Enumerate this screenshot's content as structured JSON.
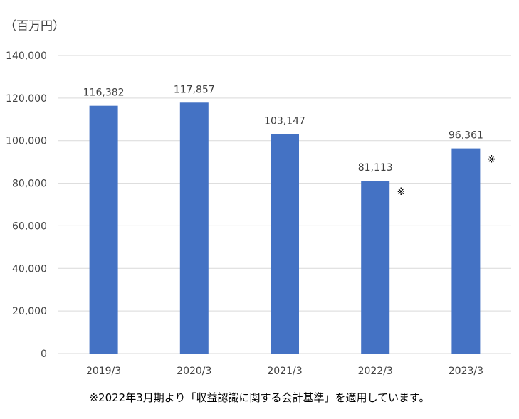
{
  "unit_label": "（百万円）",
  "footnote": "※2022年3月期より「収益認識に関する会計基準」を適用しています。",
  "colors": {
    "bar": "#4472C4",
    "grid": "#D9D9D9",
    "text": "#404040"
  },
  "chart_data": {
    "type": "bar",
    "title": "",
    "xlabel": "",
    "ylabel": "（百万円）",
    "categories": [
      "2019/3",
      "2020/3",
      "2021/3",
      "2022/3",
      "2023/3"
    ],
    "values": [
      116382,
      117857,
      103147,
      81113,
      96361
    ],
    "value_labels": [
      "116,382",
      "117,857",
      "103,147",
      "81,113",
      "96,361"
    ],
    "markers": [
      "",
      "",
      "",
      "※",
      "※"
    ],
    "ylim": [
      0,
      140000
    ],
    "yticks": [
      0,
      20000,
      40000,
      60000,
      80000,
      100000,
      120000,
      140000
    ],
    "ytick_labels": [
      "0",
      "20,000",
      "40,000",
      "60,000",
      "80,000",
      "100,000",
      "120,000",
      "140,000"
    ],
    "grid": true
  }
}
